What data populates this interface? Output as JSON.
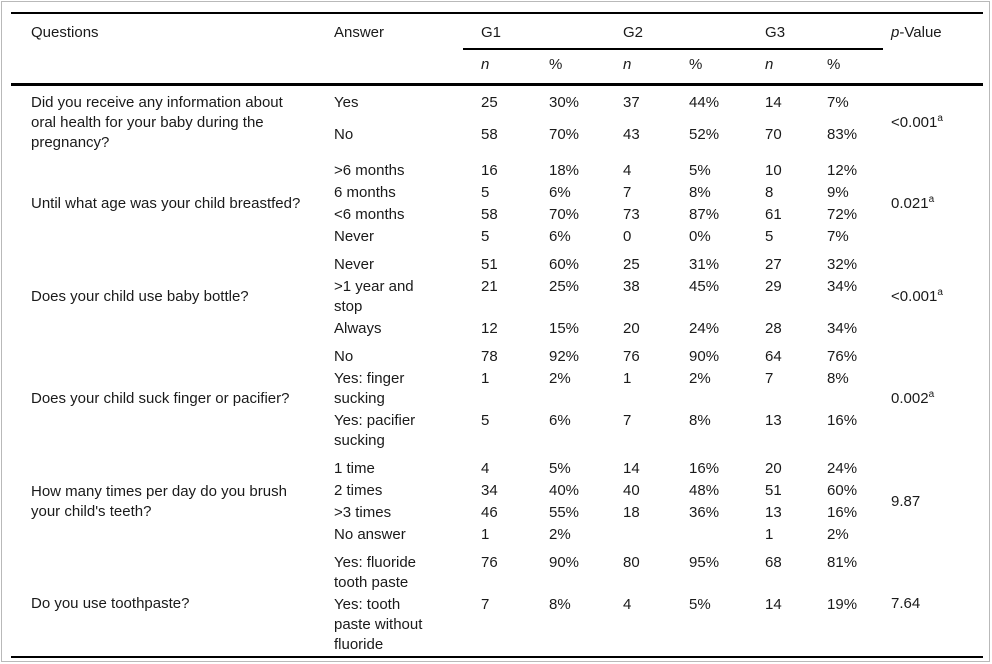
{
  "page": {
    "background": "#ffffff",
    "frame_color": "#b9b9b9",
    "rule_color": "#000000",
    "text_color": "#1a1a1a"
  },
  "table": {
    "headers": {
      "questions": "Questions",
      "answer": "Answer",
      "groups": [
        "G1",
        "G2",
        "G3"
      ],
      "sub": [
        "n",
        "%",
        "n",
        "%",
        "n",
        "%"
      ],
      "p_italic": "p",
      "p_rest": "-Value"
    },
    "blocks": [
      {
        "question": "Did you receive any information about oral health for your baby during the pregnancy?",
        "p_value": "<0.001",
        "p_sup": "a",
        "answers": [
          {
            "label": "Yes",
            "values": [
              "25",
              "30%",
              "37",
              "44%",
              "14",
              "7%"
            ]
          },
          {
            "label": "No",
            "values": [
              "58",
              "70%",
              "43",
              "52%",
              "70",
              "83%"
            ]
          }
        ]
      },
      {
        "question": "Until what age was your child breastfed?",
        "p_value": "0.021",
        "p_sup": "a",
        "answers": [
          {
            "label": ">6 months",
            "values": [
              "16",
              "18%",
              "4",
              "5%",
              "10",
              "12%"
            ]
          },
          {
            "label": "6 months",
            "values": [
              "5",
              "6%",
              "7",
              "8%",
              "8",
              "9%"
            ]
          },
          {
            "label": "<6 months",
            "values": [
              "58",
              "70%",
              "73",
              "87%",
              "61",
              "72%"
            ]
          },
          {
            "label": "Never",
            "values": [
              "5",
              "6%",
              "0",
              "0%",
              "5",
              "7%"
            ]
          }
        ]
      },
      {
        "question": "Does your child use baby bottle?",
        "p_value": "<0.001",
        "p_sup": "a",
        "answers": [
          {
            "label": "Never",
            "values": [
              "51",
              "60%",
              "25",
              "31%",
              "27",
              "32%"
            ]
          },
          {
            "label": ">1 year and stop",
            "values": [
              "21",
              "25%",
              "38",
              "45%",
              "29",
              "34%"
            ]
          },
          {
            "label": "Always",
            "values": [
              "12",
              "15%",
              "20",
              "24%",
              "28",
              "34%"
            ]
          }
        ]
      },
      {
        "question": "Does your child suck finger or pacifier?",
        "p_value": "0.002",
        "p_sup": "a",
        "answers": [
          {
            "label": "No",
            "values": [
              "78",
              "92%",
              "76",
              "90%",
              "64",
              "76%"
            ]
          },
          {
            "label": "Yes: finger sucking",
            "values": [
              "1",
              "2%",
              "1",
              "2%",
              "7",
              "8%"
            ]
          },
          {
            "label": "Yes: pacifier sucking",
            "values": [
              "5",
              "6%",
              "7",
              "8%",
              "13",
              "16%"
            ]
          }
        ]
      },
      {
        "question": "How many times per day do you brush your child's teeth?",
        "p_value": "9.87",
        "p_sup": "",
        "answers": [
          {
            "label": "1 time",
            "values": [
              "4",
              "5%",
              "14",
              "16%",
              "20",
              "24%"
            ]
          },
          {
            "label": "2 times",
            "values": [
              "34",
              "40%",
              "40",
              "48%",
              "51",
              "60%"
            ]
          },
          {
            "label": ">3 times",
            "values": [
              "46",
              "55%",
              "18",
              "36%",
              "13",
              "16%"
            ]
          },
          {
            "label": "No answer",
            "values": [
              "1",
              "2%",
              "",
              "",
              "1",
              "2%"
            ]
          }
        ]
      },
      {
        "question": "Do you use toothpaste?",
        "p_value": "7.64",
        "p_sup": "",
        "answers": [
          {
            "label": "Yes: fluoride tooth paste",
            "values": [
              "76",
              "90%",
              "80",
              "95%",
              "68",
              "81%"
            ]
          },
          {
            "label": "Yes: tooth paste without fluoride",
            "values": [
              "7",
              "8%",
              "4",
              "5%",
              "14",
              "19%"
            ]
          }
        ]
      }
    ]
  }
}
